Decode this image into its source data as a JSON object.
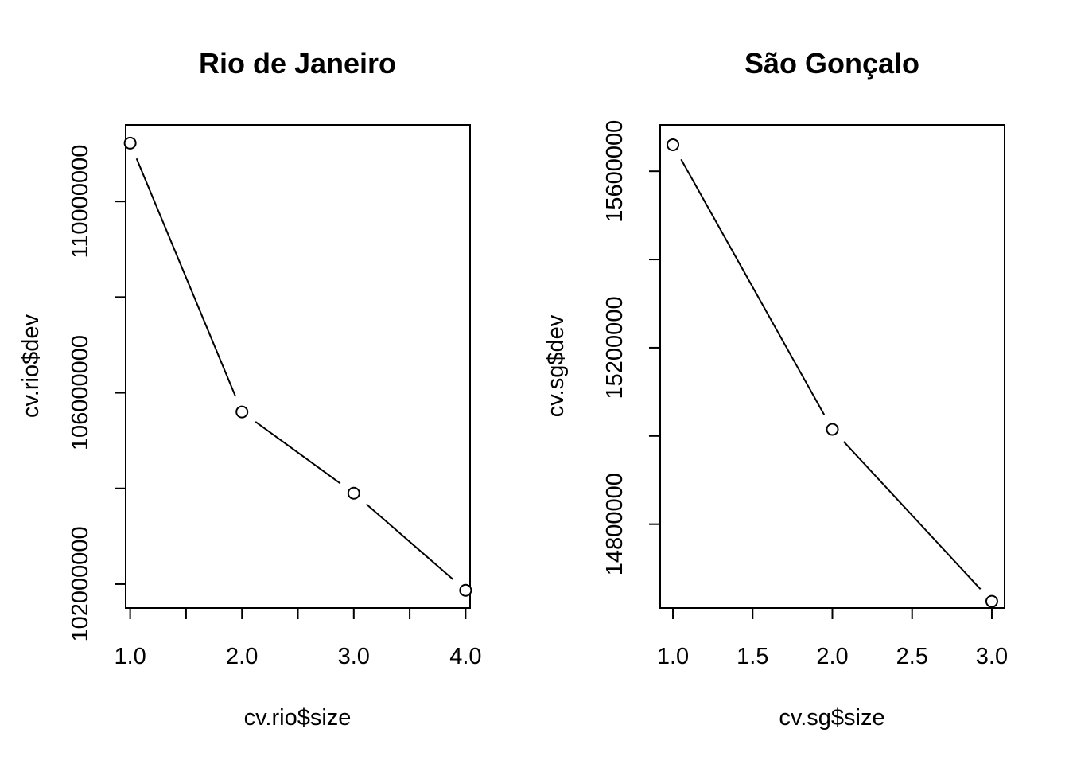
{
  "chart_data": [
    {
      "type": "line",
      "title": "Rio de Janeiro",
      "xlabel": "cv.rio$size",
      "ylabel": "cv.rio$dev",
      "x_ticks": [
        1.0,
        1.5,
        2.0,
        2.5,
        3.0,
        3.5,
        4.0
      ],
      "x_tick_labels": [
        "1.0",
        "2.0",
        "3.0",
        "4.0"
      ],
      "x_tick_label_values": [
        1.0,
        2.0,
        3.0,
        4.0
      ],
      "y_ticks": [
        102000000,
        104000000,
        106000000,
        108000000,
        110000000
      ],
      "y_tick_labels": [
        "102000000",
        "106000000",
        "110000000"
      ],
      "y_tick_label_values": [
        102000000,
        106000000,
        110000000
      ],
      "xlim": [
        0.96,
        4.04
      ],
      "ylim": [
        101500000,
        111600000
      ],
      "series": [
        {
          "x": [
            1,
            2,
            3,
            4
          ],
          "y": [
            111220000,
            105600000,
            103900000,
            101870000
          ]
        }
      ],
      "point_style": "open-circle",
      "grid": false
    },
    {
      "type": "line",
      "title": "São Gonçalo",
      "xlabel": "cv.sg$size",
      "ylabel": "cv.sg$dev",
      "x_ticks": [
        1.0,
        1.5,
        2.0,
        2.5,
        3.0
      ],
      "x_tick_labels": [
        "1.0",
        "1.5",
        "2.0",
        "2.5",
        "3.0"
      ],
      "x_tick_label_values": [
        1.0,
        1.5,
        2.0,
        2.5,
        3.0
      ],
      "y_ticks": [
        14800000,
        15000000,
        15200000,
        15400000,
        15600000
      ],
      "y_tick_labels": [
        "14800000",
        "15200000",
        "15600000"
      ],
      "y_tick_label_values": [
        14800000,
        15200000,
        15600000
      ],
      "xlim": [
        0.92,
        3.08
      ],
      "ylim": [
        14610000,
        15705000
      ],
      "series": [
        {
          "x": [
            1,
            2,
            3
          ],
          "y": [
            15660000,
            15015000,
            14625000
          ]
        }
      ],
      "point_style": "open-circle",
      "grid": false
    }
  ]
}
